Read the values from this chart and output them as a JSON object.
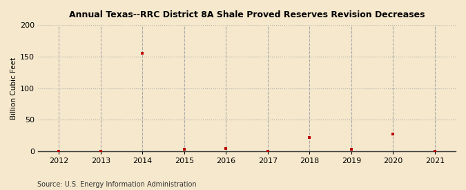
{
  "title": "Annual Texas--RRC District 8A Shale Proved Reserves Revision Decreases",
  "ylabel": "Billion Cubic Feet",
  "source": "Source: U.S. Energy Information Administration",
  "years": [
    2012,
    2013,
    2014,
    2015,
    2016,
    2017,
    2018,
    2019,
    2020,
    2021
  ],
  "values": [
    0.3,
    0.5,
    155.0,
    3.5,
    4.8,
    0.4,
    22.0,
    3.2,
    27.0,
    0.5
  ],
  "marker_color": "#bb0000",
  "bg_color": "#f5e8cc",
  "grid_color": "#aaaaaa",
  "ylim": [
    0,
    200
  ],
  "yticks": [
    0,
    50,
    100,
    150,
    200
  ],
  "xlim": [
    2011.5,
    2021.5
  ],
  "xticks": [
    2012,
    2013,
    2014,
    2015,
    2016,
    2017,
    2018,
    2019,
    2020,
    2021
  ]
}
